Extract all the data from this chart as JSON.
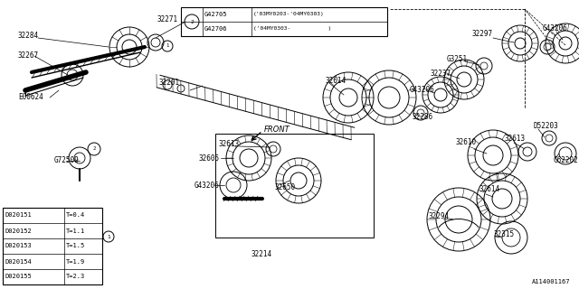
{
  "bg_color": "#ffffff",
  "line_color": "#000000",
  "part_number": "A114001167",
  "legend_rows": [
    [
      "D020151",
      "T=0.4"
    ],
    [
      "D020152",
      "T=1.1"
    ],
    [
      "D020153",
      "T=1.5"
    ],
    [
      "D020154",
      "T=1.9"
    ],
    [
      "D020155",
      "T=2.3"
    ]
  ],
  "ref_rows": [
    [
      "G42705",
      "('03MY0203-'04MY0303)"
    ],
    [
      "G42706",
      "('04MY0303-           )"
    ]
  ]
}
